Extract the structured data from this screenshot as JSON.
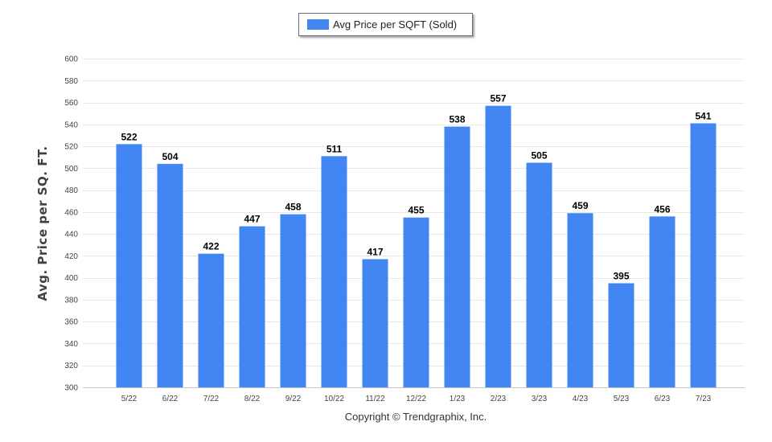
{
  "chart_data": {
    "type": "bar",
    "legend": {
      "label": "Avg Price per SQFT (Sold)",
      "placement": "top-center"
    },
    "ylabel": "Avg. Price per SQ. FT.",
    "xlabel": "",
    "ylim": [
      300,
      600
    ],
    "ytick_step": 20,
    "grid": true,
    "bar_color": "#4286f4",
    "categories": [
      "5/22",
      "6/22",
      "7/22",
      "8/22",
      "9/22",
      "10/22",
      "11/22",
      "12/22",
      "1/23",
      "2/23",
      "3/23",
      "4/23",
      "5/23",
      "6/23",
      "7/23"
    ],
    "series": [
      {
        "name": "Avg Price per SQFT (Sold)",
        "values": [
          522,
          504,
          422,
          447,
          458,
          511,
          417,
          455,
          538,
          557,
          505,
          459,
          395,
          456,
          541
        ]
      }
    ]
  },
  "footer": {
    "copyright": "Copyright © Trendgraphix, Inc."
  }
}
